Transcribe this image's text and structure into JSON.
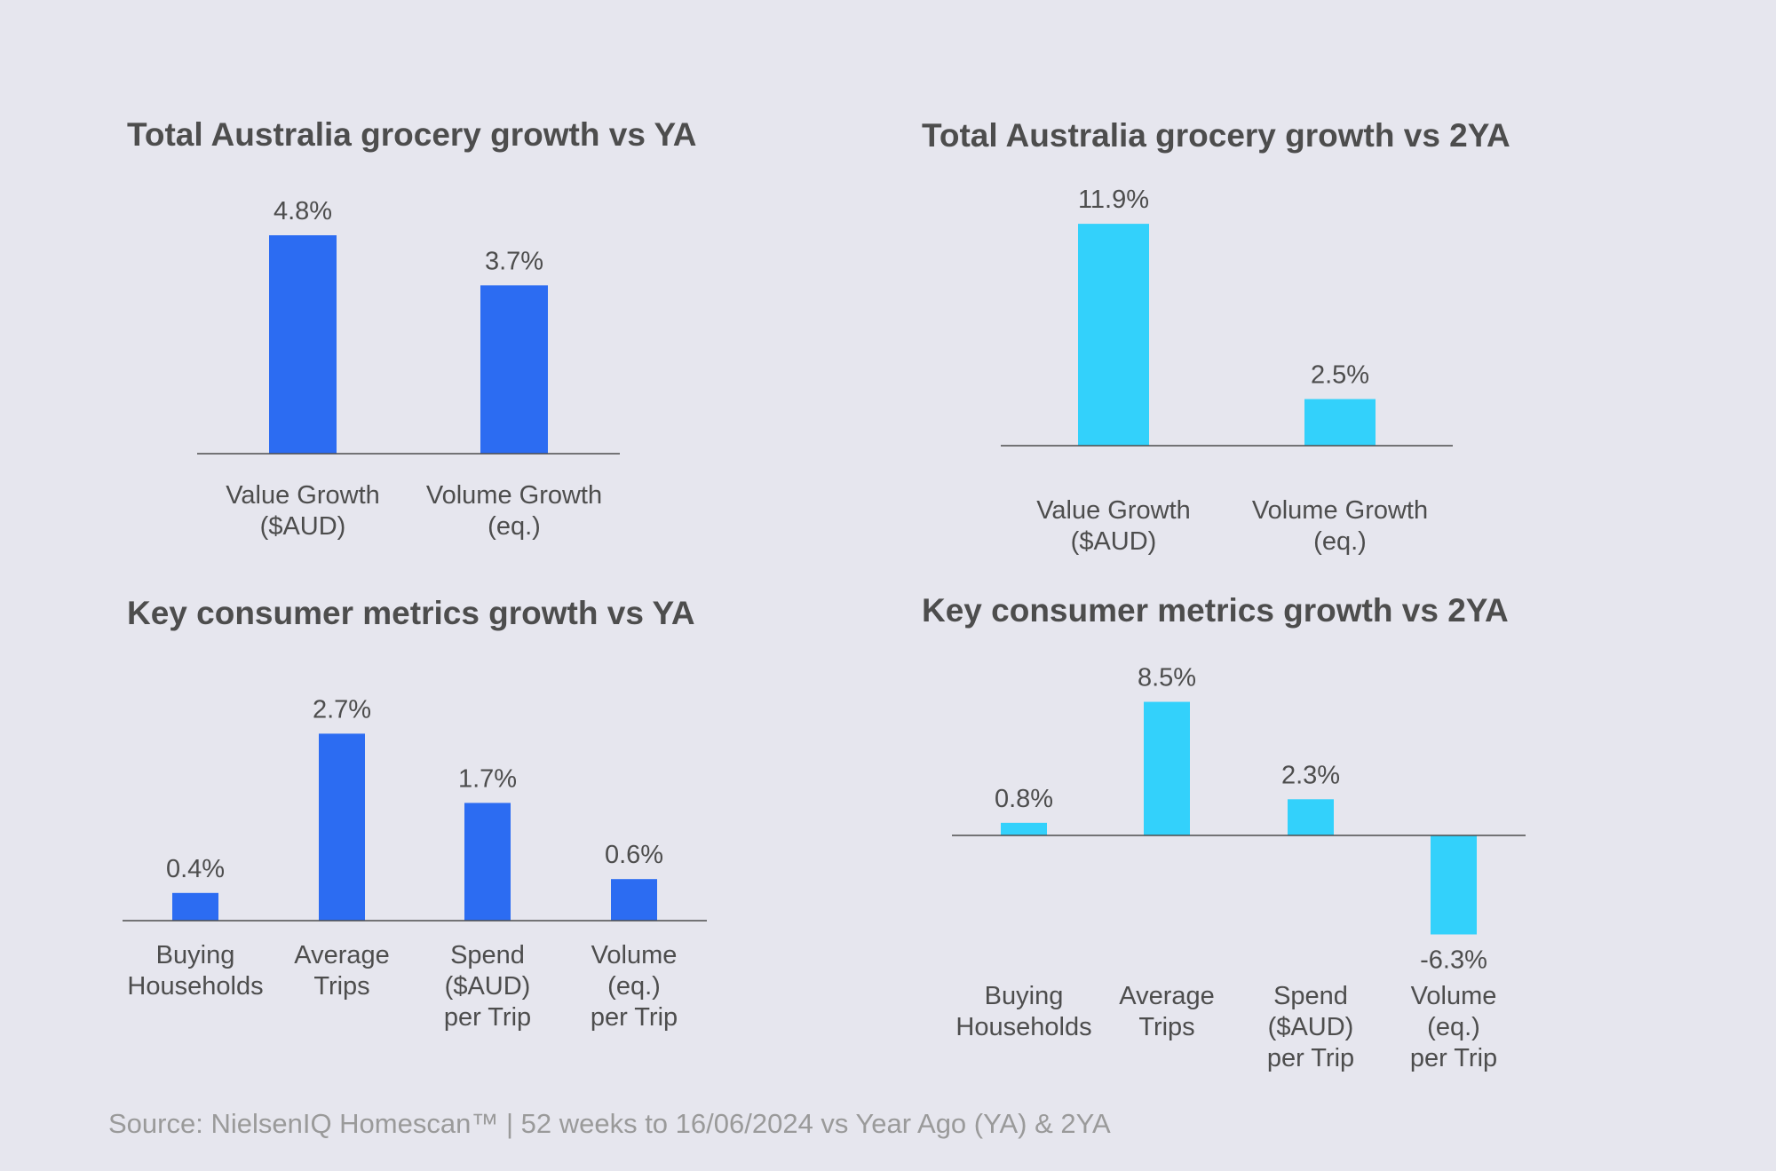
{
  "colors": {
    "background": "#e6e6ee",
    "vs_ya": "#2c6cf2",
    "vs_2ya": "#33d1fb",
    "text": "#4d4d4d",
    "source": "#9a9a9a"
  },
  "chart_data": [
    {
      "type": "bar",
      "title": "Total Australia grocery growth vs YA",
      "categories": [
        [
          "Value Growth",
          "($AUD)"
        ],
        [
          "Volume Growth",
          "(eq.)"
        ]
      ],
      "values": [
        4.8,
        3.7
      ],
      "labels": [
        "4.8%",
        "3.7%"
      ],
      "unit": "%"
    },
    {
      "type": "bar",
      "title": "Total Australia grocery growth vs 2YA",
      "categories": [
        [
          "Value Growth",
          "($AUD)"
        ],
        [
          "Volume Growth",
          "(eq.)"
        ]
      ],
      "values": [
        11.9,
        2.5
      ],
      "labels": [
        "11.9%",
        "2.5%"
      ],
      "unit": "%"
    },
    {
      "type": "bar",
      "title": "Key consumer metrics growth vs YA",
      "categories": [
        [
          "Buying",
          "Households"
        ],
        [
          "Average",
          "Trips"
        ],
        [
          "Spend",
          "($AUD)",
          "per Trip"
        ],
        [
          "Volume",
          "(eq.)",
          "per Trip"
        ]
      ],
      "values": [
        0.4,
        2.7,
        1.7,
        0.6
      ],
      "labels": [
        "0.4%",
        "2.7%",
        "1.7%",
        "0.6%"
      ],
      "unit": "%"
    },
    {
      "type": "bar",
      "title": "Key consumer metrics growth vs 2YA",
      "categories": [
        [
          "Buying",
          "Households"
        ],
        [
          "Average",
          "Trips"
        ],
        [
          "Spend",
          "($AUD)",
          "per Trip"
        ],
        [
          "Volume",
          "(eq.)",
          "per Trip"
        ]
      ],
      "values": [
        0.8,
        8.5,
        2.3,
        -6.3
      ],
      "labels": [
        "0.8%",
        "8.5%",
        "2.3%",
        "-6.3%"
      ],
      "unit": "%"
    }
  ],
  "source": "Source: NielsenIQ Homescan™ | 52 weeks to 16/06/2024 vs Year Ago (YA) & 2YA"
}
